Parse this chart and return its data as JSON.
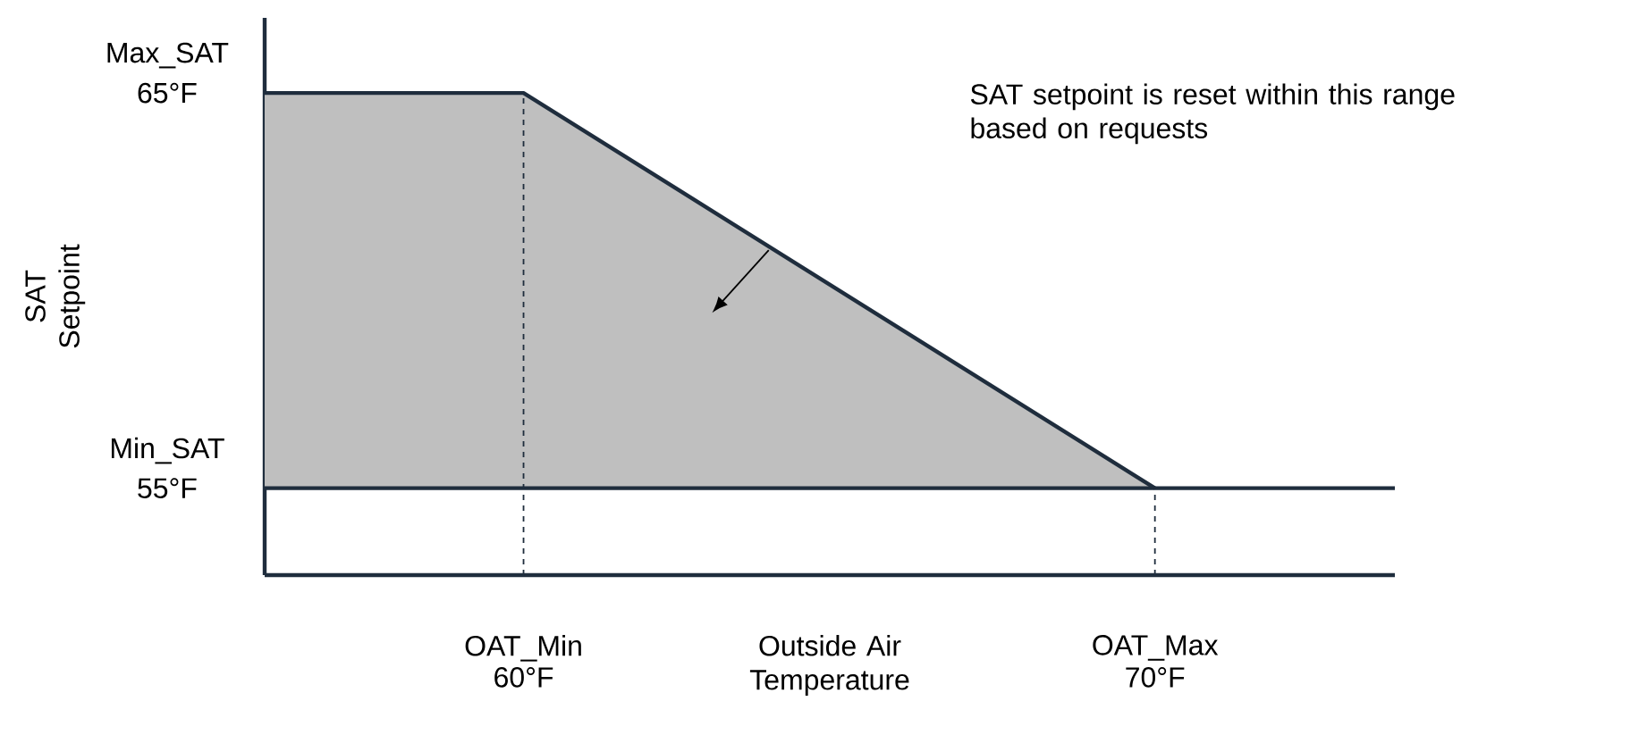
{
  "chart_data": {
    "type": "line",
    "xlabel": "Outside Air Temperature",
    "ylabel": "SAT Setpoint",
    "xlim": [
      55.9,
      73.8
    ],
    "ylim": [
      52.8,
      66.9
    ],
    "xticks": [
      {
        "value": 60,
        "label": "60°F"
      },
      {
        "value": 70,
        "label": "70°F"
      }
    ],
    "yticks": [
      {
        "value": 55,
        "label": "55°F"
      },
      {
        "value": 65,
        "label": "65°F"
      }
    ],
    "series": [
      {
        "color": "#1f2d3d",
        "x": [
          55.9,
          60,
          70
        ],
        "values": [
          65,
          65,
          55
        ],
        "lower": [
          55,
          55,
          55
        ],
        "upper": [
          65,
          65,
          55
        ]
      }
    ],
    "ref_lines": [
      {
        "axis": "y",
        "value": 55,
        "color": "#1f2d3d"
      },
      {
        "axis": "x",
        "value": 60,
        "line_style": "dashed",
        "color": "#1f2d3d"
      },
      {
        "axis": "x",
        "value": 70,
        "line_style": "dashed",
        "color": "#1f2d3d"
      }
    ],
    "annotations": [
      "SAT setpoint is reset within this range based on requests",
      "Min_SAT",
      "Max_SAT",
      "OAT_Min",
      "OAT_Max"
    ],
    "grid": false,
    "line_style": "solid",
    "marker": "none"
  }
}
